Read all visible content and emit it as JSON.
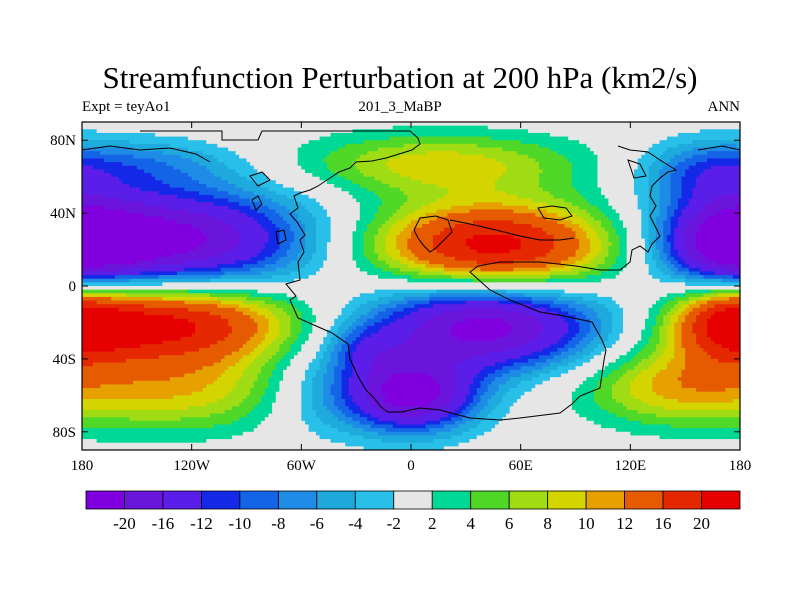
{
  "title": "Streamfunction Perturbation at 200 hPa (km2/s)",
  "subtitle_left": "Expt = teyAo1",
  "subtitle_center": "201_3_MaBP",
  "subtitle_right": "ANN",
  "chart_data": {
    "type": "heatmap",
    "title": "Streamfunction Perturbation at 200 hPa (km2/s)",
    "projection": "cylindrical equidistant",
    "xlim": [
      -180,
      180
    ],
    "ylim": [
      -90,
      90
    ],
    "x_ticks": [
      {
        "value": -180,
        "label": "180"
      },
      {
        "value": -120,
        "label": "120W"
      },
      {
        "value": -60,
        "label": "60W"
      },
      {
        "value": 0,
        "label": "0"
      },
      {
        "value": 60,
        "label": "60E"
      },
      {
        "value": 120,
        "label": "120E"
      },
      {
        "value": 180,
        "label": "180"
      }
    ],
    "y_ticks": [
      {
        "value": 80,
        "label": "80N"
      },
      {
        "value": 40,
        "label": "40N"
      },
      {
        "value": 0,
        "label": "0"
      },
      {
        "value": -40,
        "label": "40S"
      },
      {
        "value": -80,
        "label": "80S"
      }
    ],
    "levels": [
      -20,
      -16,
      -12,
      -10,
      -8,
      -6,
      -4,
      -2,
      2,
      4,
      6,
      8,
      10,
      12,
      16,
      20
    ],
    "level_labels": [
      "-20",
      "-16",
      "-12",
      "-10",
      "-8",
      "-6",
      "-4",
      "-2",
      "2",
      "4",
      "6",
      "8",
      "10",
      "12",
      "16",
      "20"
    ],
    "colors": [
      "#8000e0",
      "#6a14dc",
      "#5a1ee8",
      "#1428e8",
      "#1464e8",
      "#1e8ce6",
      "#1eaadc",
      "#28c0e8",
      "#e6e6e6",
      "#00d896",
      "#50d828",
      "#a0dc14",
      "#d4d400",
      "#e6a000",
      "#e65a00",
      "#e62800",
      "#e60000"
    ],
    "field_centers": [
      {
        "lon": -135,
        "lat": 25,
        "value": -22,
        "rlon": 55,
        "rlat": 20
      },
      {
        "lon": 175,
        "lat": 22,
        "value": -16,
        "rlon": 25,
        "rlat": 18
      },
      {
        "lon": 45,
        "lat": 22,
        "value": 22,
        "rlon": 48,
        "rlat": 17
      },
      {
        "lon": 15,
        "lat": 67,
        "value": 9,
        "rlon": 55,
        "rlat": 12
      },
      {
        "lon": 160,
        "lat": 62,
        "value": -7,
        "rlon": 25,
        "rlat": 13
      },
      {
        "lon": -150,
        "lat": 67,
        "value": -6,
        "rlon": 40,
        "rlat": 10
      },
      {
        "lon": -135,
        "lat": -20,
        "value": 22,
        "rlon": 50,
        "rlat": 16
      },
      {
        "lon": 175,
        "lat": -18,
        "value": 14,
        "rlon": 22,
        "rlat": 16
      },
      {
        "lon": 40,
        "lat": -22,
        "value": -22,
        "rlon": 45,
        "rlat": 17
      },
      {
        "lon": -25,
        "lat": -35,
        "value": -6,
        "rlon": 15,
        "rlat": 10
      },
      {
        "lon": 0,
        "lat": -60,
        "value": -22,
        "rlon": 25,
        "rlat": 14
      },
      {
        "lon": -50,
        "lat": -58,
        "value": -5,
        "rlon": 22,
        "rlat": 18
      },
      {
        "lon": -130,
        "lat": -58,
        "value": 9,
        "rlon": 50,
        "rlat": 16
      },
      {
        "lon": 140,
        "lat": -55,
        "value": 9,
        "rlon": 35,
        "rlat": 15
      }
    ],
    "colorbar": "horizontal, below map"
  }
}
